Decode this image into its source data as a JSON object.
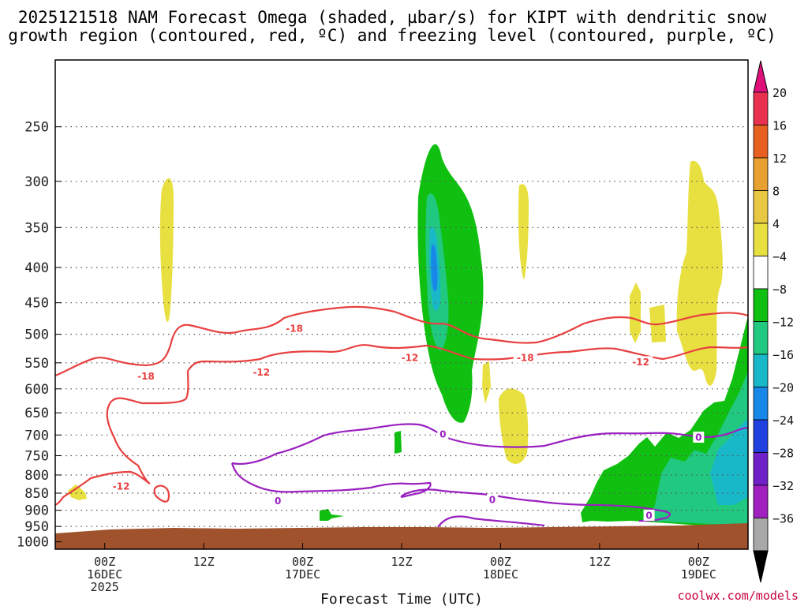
{
  "title_line1": "2025121518 NAM Forecast Omega (shaded, µbar/s) for KIPT with dendritic snow",
  "title_line2": "growth region (contoured, red, ºC) and freezing level (contoured, purple, ºC)",
  "credit": "coolwx.com/models",
  "chart_data": {
    "type": "time-height cross section",
    "xlabel": "Forecast Time (UTC)",
    "x_ticks": [
      {
        "hour": 6,
        "lines": [
          "00Z",
          "16DEC",
          "2025"
        ]
      },
      {
        "hour": 18,
        "lines": [
          "12Z"
        ]
      },
      {
        "hour": 30,
        "lines": [
          "00Z",
          "17DEC"
        ]
      },
      {
        "hour": 42,
        "lines": [
          "12Z"
        ]
      },
      {
        "hour": 54,
        "lines": [
          "00Z",
          "18DEC"
        ]
      },
      {
        "hour": 66,
        "lines": [
          "12Z"
        ]
      },
      {
        "hour": 78,
        "lines": [
          "00Z",
          "19DEC"
        ]
      }
    ],
    "x_range_hours": [
      0,
      84
    ],
    "y_levels_hpa": [
      250,
      300,
      350,
      400,
      450,
      500,
      550,
      600,
      650,
      700,
      750,
      800,
      850,
      900,
      950,
      1000
    ],
    "y_range_hpa": [
      200,
      1025
    ],
    "y_scale": "log-pressure (reversed)",
    "grid": "dotted horizontal lines at pressure levels",
    "colorbar": {
      "labels": [
        "20",
        "16",
        "12",
        "8",
        "4",
        "−4",
        "−8",
        "−12",
        "−16",
        "−20",
        "−24",
        "−28",
        "−32",
        "−36"
      ],
      "colors": [
        "#e8304e",
        "#e86020",
        "#e8a030",
        "#e8c842",
        "#e8e040",
        "#ffffff",
        "#10c010",
        "#20c880",
        "#18b8c8",
        "#1888e8",
        "#2040e0",
        "#7020c8",
        "#a020c0",
        "#a8a8a8"
      ],
      "top_arrow_color": "#e0107a",
      "bottom_arrow_color": "#000000"
    },
    "contour_labels": [
      {
        "text": "-18",
        "color": "#e84040",
        "hour": 29,
        "p": 490
      },
      {
        "text": "-18",
        "color": "#e84040",
        "hour": 11,
        "p": 575
      },
      {
        "text": "-12",
        "color": "#e84040",
        "hour": 25,
        "p": 567
      },
      {
        "text": "-12",
        "color": "#e84040",
        "hour": 43,
        "p": 540
      },
      {
        "text": "-18",
        "color": "#e84040",
        "hour": 57,
        "p": 540
      },
      {
        "text": "-12",
        "color": "#e84040",
        "hour": 71,
        "p": 548
      },
      {
        "text": "-12",
        "color": "#e84040",
        "hour": 8,
        "p": 830
      },
      {
        "text": "0",
        "color": "#9a20c0",
        "hour": 47,
        "p": 698
      },
      {
        "text": "0",
        "color": "#9a20c0",
        "hour": 78,
        "p": 705
      },
      {
        "text": "0",
        "color": "#9a20c0",
        "hour": 27,
        "p": 872
      },
      {
        "text": "0",
        "color": "#9a20c0",
        "hour": 53,
        "p": 868
      },
      {
        "text": "0",
        "color": "#9a20c0",
        "hour": 72,
        "p": 915
      }
    ],
    "terrain_color": "#a0522d"
  }
}
